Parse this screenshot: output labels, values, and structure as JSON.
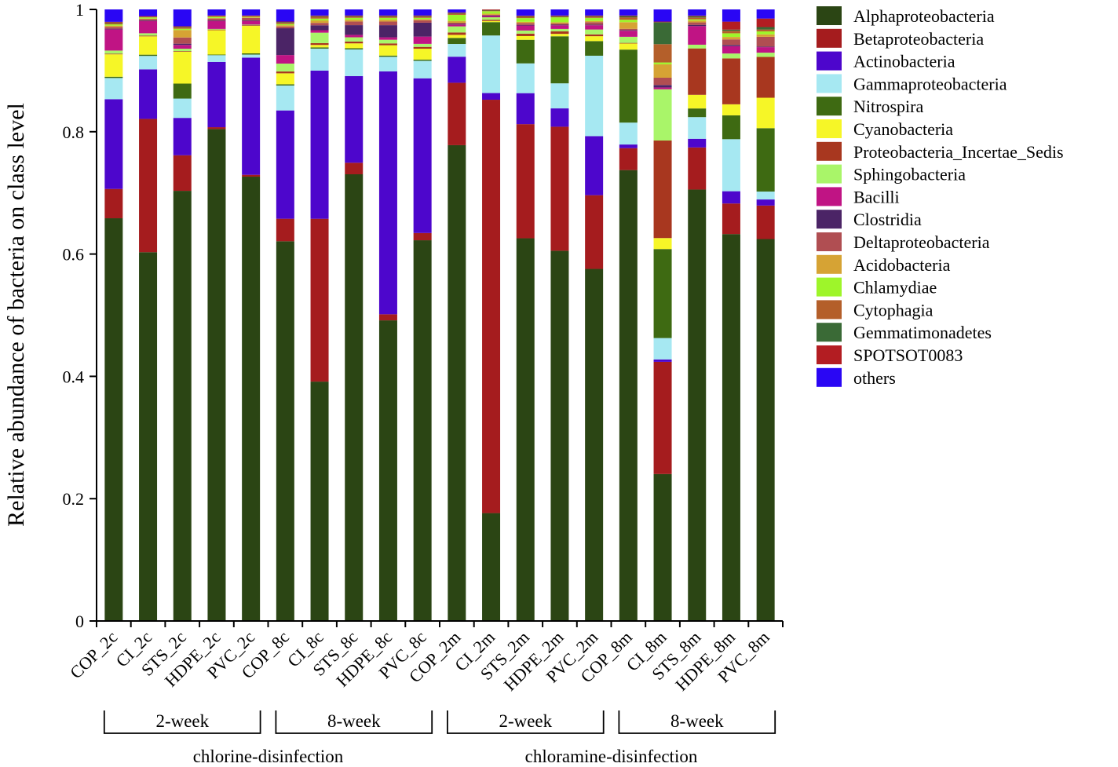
{
  "chart_data": {
    "type": "bar",
    "stacked": true,
    "ylabel": "Relative abundance of bacteria on class level",
    "ylim": [
      0,
      1
    ],
    "yticks": [
      "0",
      "0.2",
      "0.4",
      "0.6",
      "0.8",
      "1"
    ],
    "yticks_values": [
      0,
      0.2,
      0.4,
      0.6,
      0.8,
      1
    ],
    "categories": [
      "COP_2c",
      "CI_2c",
      "STS_2c",
      "HDPE_2c",
      "PVC_2c",
      "COP_8c",
      "CI_8c",
      "STS_8c",
      "HDPE_8c",
      "PVC_8c",
      "COP_2m",
      "CI_2m",
      "STS_2m",
      "HDPE_2m",
      "PVC_2m",
      "COP_8m",
      "CI_8m",
      "STS_8m",
      "HDPE_8m",
      "PVC_8m"
    ],
    "groups": [
      {
        "label": "2-week",
        "from": 0,
        "to": 4
      },
      {
        "label": "8-week",
        "from": 5,
        "to": 9
      },
      {
        "label": "2-week",
        "from": 10,
        "to": 14
      },
      {
        "label": "8-week",
        "from": 15,
        "to": 19
      }
    ],
    "supergroups": [
      {
        "label": "chlorine-disinfection",
        "from": 0,
        "to": 9
      },
      {
        "label": "chloramine-disinfection",
        "from": 10,
        "to": 19
      }
    ],
    "legend_position": "right",
    "series": [
      {
        "name": "Alphaproteobacteria",
        "color": "#2b4514",
        "values": [
          0.646,
          0.603,
          0.69,
          0.806,
          0.728,
          0.624,
          0.391,
          0.737,
          0.495,
          0.63,
          0.785,
          0.178,
          0.617,
          0.606,
          0.578,
          0.741,
          0.241,
          0.697,
          0.632,
          0.627
        ]
      },
      {
        "name": "Betaproteobacteria",
        "color": "#a51c1e",
        "values": [
          0.047,
          0.218,
          0.057,
          0.003,
          0.003,
          0.037,
          0.266,
          0.019,
          0.01,
          0.012,
          0.103,
          0.682,
          0.184,
          0.203,
          0.121,
          0.036,
          0.184,
          0.068,
          0.05,
          0.055
        ]
      },
      {
        "name": "Actinobacteria",
        "color": "#4d06cc",
        "values": [
          0.144,
          0.081,
          0.06,
          0.107,
          0.192,
          0.178,
          0.242,
          0.143,
          0.4,
          0.256,
          0.043,
          0.011,
          0.05,
          0.03,
          0.097,
          0.006,
          0.004,
          0.014,
          0.02,
          0.01
        ]
      },
      {
        "name": "Gammaproteobacteria",
        "color": "#a6e8f2",
        "values": [
          0.034,
          0.022,
          0.031,
          0.011,
          0.005,
          0.041,
          0.036,
          0.044,
          0.024,
          0.029,
          0.021,
          0.095,
          0.048,
          0.041,
          0.132,
          0.036,
          0.035,
          0.035,
          0.085,
          0.013
        ]
      },
      {
        "name": "Nitrospira",
        "color": "#3e6a12",
        "values": [
          0.002,
          0.002,
          0.024,
          0.001,
          0.002,
          0.002,
          0.002,
          0.002,
          0.002,
          0.002,
          0.01,
          0.022,
          0.038,
          0.077,
          0.024,
          0.12,
          0.146,
          0.014,
          0.039,
          0.104
        ]
      },
      {
        "name": "Cyanobacteria",
        "color": "#f6f627",
        "values": [
          0.036,
          0.03,
          0.051,
          0.04,
          0.045,
          0.018,
          0.004,
          0.008,
          0.017,
          0.018,
          0.005,
          0.002,
          0.006,
          0.004,
          0.008,
          0.01,
          0.018,
          0.022,
          0.018,
          0.05
        ]
      },
      {
        "name": "Proteobacteria_Incertae_Sedis",
        "color": "#a8371f",
        "values": [
          0.001,
          0.001,
          0.001,
          0.001,
          0.001,
          0.003,
          0.003,
          0.003,
          0.003,
          0.003,
          0.004,
          0.002,
          0.004,
          0.004,
          0.003,
          0.001,
          0.16,
          0.075,
          0.075,
          0.067
        ]
      },
      {
        "name": "Sphingobacteria",
        "color": "#a9f569",
        "values": [
          0.005,
          0.004,
          0.004,
          0.001,
          0.001,
          0.013,
          0.017,
          0.007,
          0.006,
          0.005,
          0.01,
          0.004,
          0.005,
          0.004,
          0.008,
          0.01,
          0.084,
          0.006,
          0.008,
          0.007
        ]
      },
      {
        "name": "Bacilli",
        "color": "#c01484",
        "values": [
          0.034,
          0.02,
          0.006,
          0.013,
          0.006,
          0.014,
          0.004,
          0.004,
          0.004,
          0.012,
          0.003,
          0.002,
          0.008,
          0.006,
          0.007,
          0.01,
          0.003,
          0.03,
          0.012,
          0.009
        ]
      },
      {
        "name": "Clostridia",
        "color": "#4b2466",
        "values": [
          0.001,
          0.001,
          0.002,
          0.001,
          0.001,
          0.044,
          0.008,
          0.016,
          0.02,
          0.023,
          0.001,
          0.001,
          0.001,
          0.001,
          0.001,
          0.001,
          0.004,
          0.002,
          0.002,
          0.001
        ]
      },
      {
        "name": "Deltaproteobacteria",
        "color": "#b04e52",
        "values": [
          0.003,
          0.002,
          0.01,
          0.003,
          0.004,
          0.003,
          0.004,
          0.006,
          0.006,
          0.004,
          0.002,
          0.001,
          0.003,
          0.002,
          0.004,
          0.002,
          0.012,
          0.004,
          0.009,
          0.016
        ]
      },
      {
        "name": "Acidobacteria",
        "color": "#d6a334",
        "values": [
          0.002,
          0.001,
          0.012,
          0.001,
          0.001,
          0.002,
          0.004,
          0.003,
          0.003,
          0.002,
          0.003,
          0.002,
          0.002,
          0.002,
          0.002,
          0.011,
          0.022,
          0.003,
          0.004,
          0.004
        ]
      },
      {
        "name": "Chlamydiae",
        "color": "#9ef52a",
        "values": [
          0.002,
          0.002,
          0.002,
          0.002,
          0.001,
          0.002,
          0.003,
          0.003,
          0.003,
          0.002,
          0.01,
          0.004,
          0.006,
          0.008,
          0.005,
          0.004,
          0.003,
          0.002,
          0.006,
          0.005
        ]
      },
      {
        "name": "Cytophagia",
        "color": "#b45f2a",
        "values": [
          0.002,
          0.001,
          0.002,
          0.001,
          0.001,
          0.002,
          0.003,
          0.002,
          0.002,
          0.002,
          0.002,
          0.001,
          0.002,
          0.001,
          0.002,
          0.004,
          0.03,
          0.003,
          0.004,
          0.003
        ]
      },
      {
        "name": "Gemmatimonadetes",
        "color": "#3a6a36",
        "values": [
          0.001,
          0.0,
          0.001,
          0.0,
          0.0,
          0.001,
          0.001,
          0.001,
          0.001,
          0.001,
          0.001,
          0.001,
          0.001,
          0.001,
          0.001,
          0.002,
          0.036,
          0.002,
          0.002,
          0.004
        ]
      },
      {
        "name": "SPOTSOT0083",
        "color": "#b31d22",
        "values": [
          0.001,
          0.001,
          0.001,
          0.001,
          0.001,
          0.001,
          0.001,
          0.001,
          0.001,
          0.001,
          0.001,
          0.001,
          0.001,
          0.001,
          0.001,
          0.001,
          0.001,
          0.001,
          0.013,
          0.014
        ]
      },
      {
        "name": "others",
        "color": "#2a06f4",
        "values": [
          0.02,
          0.011,
          0.027,
          0.01,
          0.01,
          0.02,
          0.01,
          0.01,
          0.01,
          0.01,
          0.005,
          0.0,
          0.01,
          0.01,
          0.01,
          0.01,
          0.02,
          0.01,
          0.02,
          0.015
        ]
      }
    ]
  }
}
